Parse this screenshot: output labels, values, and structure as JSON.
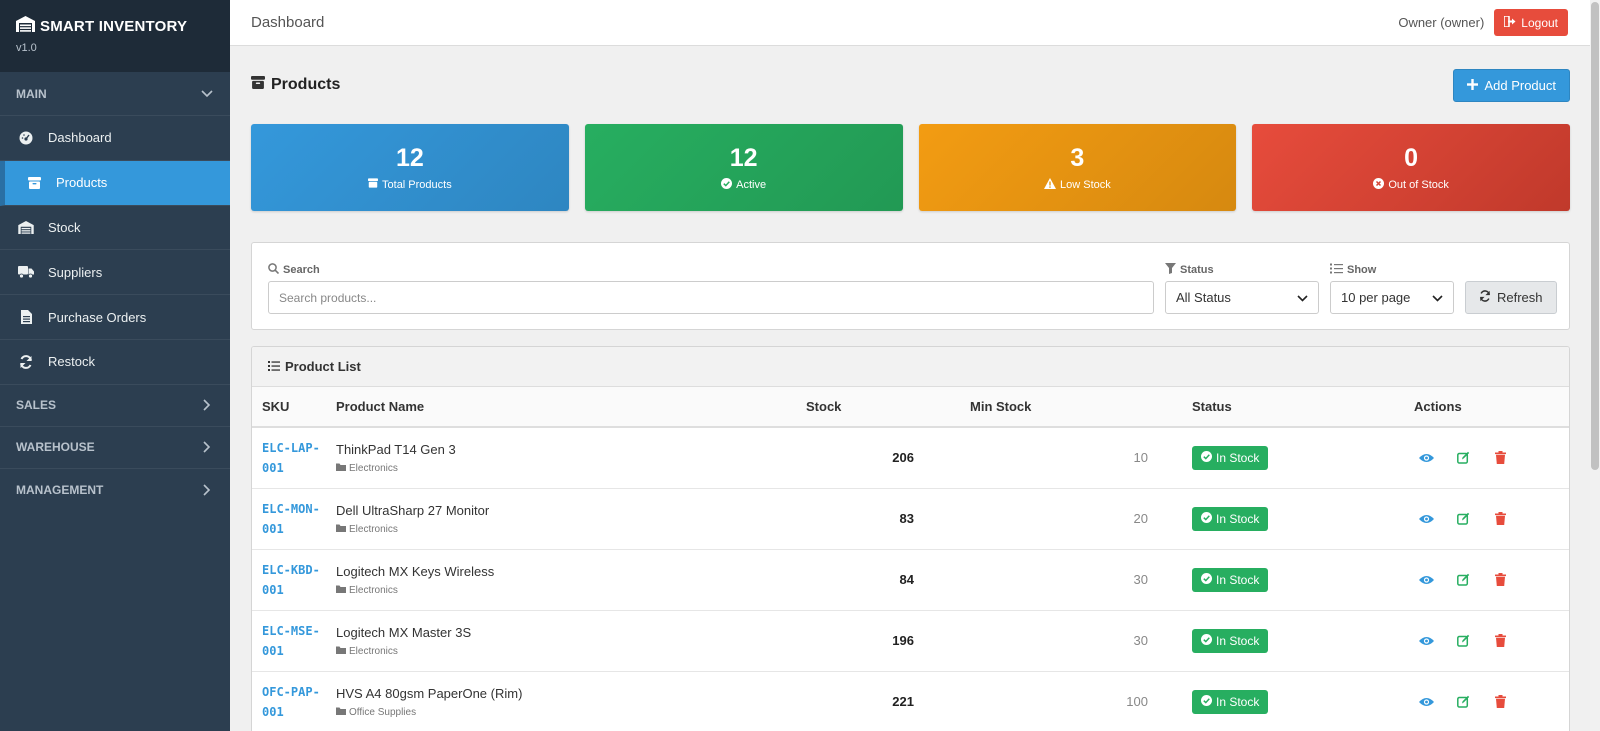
{
  "brand": {
    "name": "SMART INVENTORY",
    "version": "v1.0"
  },
  "sidebar": {
    "main_section": "MAIN",
    "items": [
      {
        "label": "Dashboard",
        "icon": "dashboard-icon"
      },
      {
        "label": "Products",
        "icon": "box-icon",
        "active": true
      },
      {
        "label": "Stock",
        "icon": "warehouse-icon"
      },
      {
        "label": "Suppliers",
        "icon": "truck-icon"
      },
      {
        "label": "Purchase Orders",
        "icon": "document-icon"
      },
      {
        "label": "Restock",
        "icon": "refresh-icon"
      }
    ],
    "sections": [
      "SALES",
      "WAREHOUSE",
      "MANAGEMENT"
    ]
  },
  "topbar": {
    "title": "Dashboard",
    "user": "Owner (owner)",
    "logout_label": "Logout"
  },
  "page": {
    "title": "Products",
    "add_label": "Add Product"
  },
  "stats": [
    {
      "value": "12",
      "label": "Total Products",
      "color": "#3498db"
    },
    {
      "value": "12",
      "label": "Active",
      "color": "#27ae60"
    },
    {
      "value": "3",
      "label": "Low Stock",
      "color": "#f39c12"
    },
    {
      "value": "0",
      "label": "Out of Stock",
      "color": "#e74c3c"
    }
  ],
  "filters": {
    "search_label": "Search",
    "search_placeholder": "Search products...",
    "status_label": "Status",
    "status_value": "All Status",
    "show_label": "Show",
    "show_value": "10 per page",
    "refresh_label": "Refresh"
  },
  "product_list": {
    "title": "Product List",
    "columns": [
      "SKU",
      "Product Name",
      "Stock",
      "Min Stock",
      "Status",
      "Actions"
    ],
    "rows": [
      {
        "sku": "ELC-LAP-001",
        "name": "ThinkPad T14 Gen 3",
        "category": "Electronics",
        "stock": "206",
        "min_stock": "10",
        "status": "In Stock"
      },
      {
        "sku": "ELC-MON-001",
        "name": "Dell UltraSharp 27 Monitor",
        "category": "Electronics",
        "stock": "83",
        "min_stock": "20",
        "status": "In Stock"
      },
      {
        "sku": "ELC-KBD-001",
        "name": "Logitech MX Keys Wireless",
        "category": "Electronics",
        "stock": "84",
        "min_stock": "30",
        "status": "In Stock"
      },
      {
        "sku": "ELC-MSE-001",
        "name": "Logitech MX Master 3S",
        "category": "Electronics",
        "stock": "196",
        "min_stock": "30",
        "status": "In Stock"
      },
      {
        "sku": "OFC-PAP-001",
        "name": "HVS A4 80gsm PaperOne (Rim)",
        "category": "Office Supplies",
        "stock": "221",
        "min_stock": "100",
        "status": "In Stock"
      }
    ]
  }
}
